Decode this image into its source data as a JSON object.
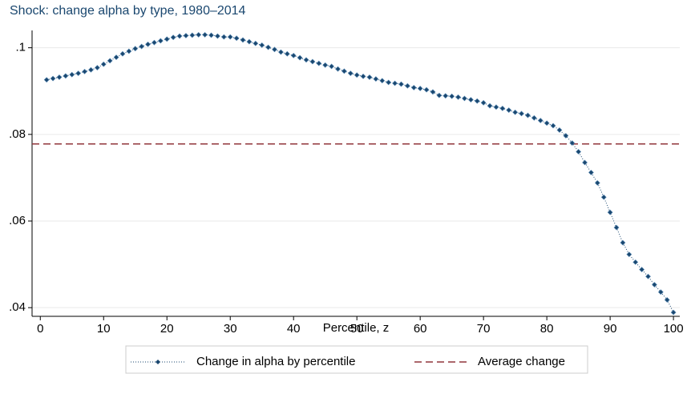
{
  "chart_data": {
    "type": "line",
    "title": "Shock: change alpha by type, 1980–2014",
    "x_label": "Percentile, z",
    "x": [
      1,
      2,
      3,
      4,
      5,
      6,
      7,
      8,
      9,
      10,
      11,
      12,
      13,
      14,
      15,
      16,
      17,
      18,
      19,
      20,
      21,
      22,
      23,
      24,
      25,
      26,
      27,
      28,
      29,
      30,
      31,
      32,
      33,
      34,
      35,
      36,
      37,
      38,
      39,
      40,
      41,
      42,
      43,
      44,
      45,
      46,
      47,
      48,
      49,
      50,
      51,
      52,
      53,
      54,
      55,
      56,
      57,
      58,
      59,
      60,
      61,
      62,
      63,
      64,
      65,
      66,
      67,
      68,
      69,
      70,
      71,
      72,
      73,
      74,
      75,
      76,
      77,
      78,
      79,
      80,
      81,
      82,
      83,
      84,
      85,
      86,
      87,
      88,
      89,
      90,
      91,
      92,
      93,
      94,
      95,
      96,
      97,
      98,
      99,
      100
    ],
    "series": [
      {
        "name": "Change in alpha by percentile",
        "color": "#1a476f",
        "values": [
          0.0926,
          0.0929,
          0.0932,
          0.0935,
          0.0938,
          0.0941,
          0.0945,
          0.0949,
          0.0954,
          0.0962,
          0.097,
          0.0978,
          0.0986,
          0.0992,
          0.0998,
          0.1003,
          0.1008,
          0.1012,
          0.1016,
          0.102,
          0.1024,
          0.1027,
          0.1028,
          0.1029,
          0.103,
          0.103,
          0.1029,
          0.1027,
          0.1025,
          0.1025,
          0.1022,
          0.1018,
          0.1014,
          0.101,
          0.1006,
          0.1001,
          0.0996,
          0.099,
          0.0986,
          0.0982,
          0.0977,
          0.0972,
          0.0968,
          0.0964,
          0.096,
          0.0957,
          0.0951,
          0.0946,
          0.0941,
          0.0937,
          0.0934,
          0.0932,
          0.0928,
          0.0924,
          0.092,
          0.0918,
          0.0916,
          0.0912,
          0.0908,
          0.0906,
          0.0903,
          0.0898,
          0.089,
          0.0889,
          0.0888,
          0.0886,
          0.0883,
          0.088,
          0.0877,
          0.0873,
          0.0866,
          0.0863,
          0.086,
          0.0856,
          0.0851,
          0.0848,
          0.0844,
          0.0838,
          0.0832,
          0.0826,
          0.082,
          0.081,
          0.0797,
          0.078,
          0.076,
          0.0735,
          0.0712,
          0.0688,
          0.0655,
          0.062,
          0.0585,
          0.055,
          0.0523,
          0.0505,
          0.0488,
          0.0472,
          0.0453,
          0.0436,
          0.0418,
          0.0389
        ]
      }
    ],
    "reference_line": {
      "name": "Average change",
      "color": "#90353b",
      "value": 0.0778
    },
    "xlim": [
      -1.3,
      101
    ],
    "ylim": [
      0.038,
      0.104
    ],
    "xticks": [
      0,
      10,
      20,
      30,
      40,
      50,
      60,
      70,
      80,
      90,
      100
    ],
    "yticks": [
      {
        "value": 0.04,
        "label": ".04"
      },
      {
        "value": 0.06,
        "label": ".06"
      },
      {
        "value": 0.08,
        "label": ".08"
      },
      {
        "value": 0.1,
        "label": ".1"
      }
    ],
    "grid": true
  }
}
